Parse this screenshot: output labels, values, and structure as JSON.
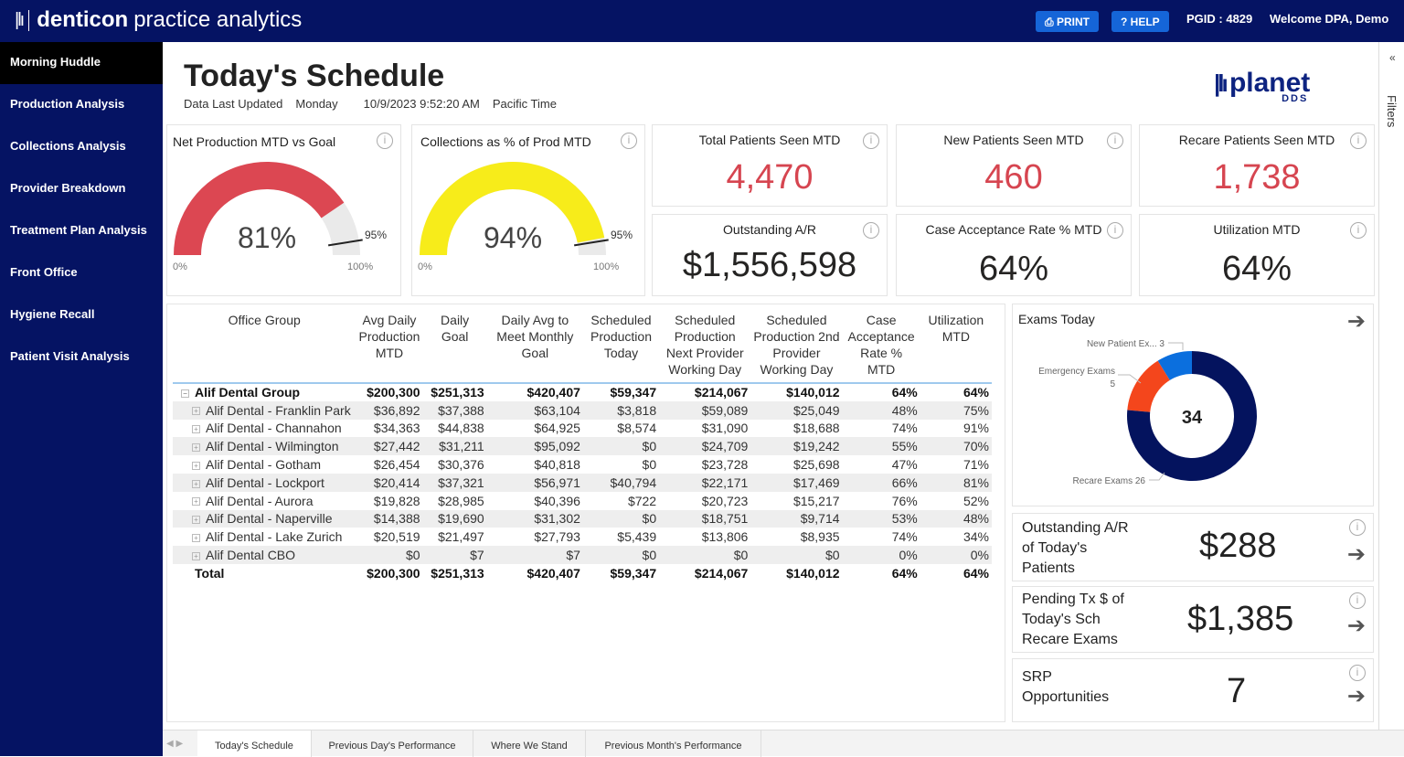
{
  "header": {
    "brand_bold": "denticon",
    "brand_rest": "practice analytics",
    "print": "PRINT",
    "help": "HELP",
    "pgid": "PGID : 4829",
    "welcome": "Welcome DPA, Demo"
  },
  "sidebar": {
    "items": [
      {
        "label": "Morning Huddle"
      },
      {
        "label": "Production Analysis"
      },
      {
        "label": "Collections Analysis"
      },
      {
        "label": "Provider Breakdown"
      },
      {
        "label": "Treatment Plan Analysis"
      },
      {
        "label": "Front Office"
      },
      {
        "label": "Hygiene Recall"
      },
      {
        "label": "Patient Visit Analysis"
      }
    ]
  },
  "page": {
    "title": "Today's Schedule",
    "updated_label": "Data Last Updated",
    "day": "Monday",
    "datetime": "10/9/2023 9:52:20 AM",
    "tz": "Pacific Time",
    "logo_text": "planet",
    "logo_sub": "DDS",
    "filters": "Filters"
  },
  "gauges": [
    {
      "title": "Net Production MTD vs Goal",
      "value": 81,
      "value_label": "81%",
      "target": 95,
      "target_label": "95%",
      "min": "0%",
      "max": "100%",
      "color": "#dc4752"
    },
    {
      "title": "Collections as % of Prod MTD",
      "value": 94,
      "value_label": "94%",
      "target": 95,
      "target_label": "95%",
      "min": "0%",
      "max": "100%",
      "color": "#f7ec1a"
    }
  ],
  "kpis": [
    {
      "title": "Total Patients Seen MTD",
      "value": "4,470"
    },
    {
      "title": "New Patients Seen MTD",
      "value": "460"
    },
    {
      "title": "Recare Patients Seen MTD",
      "value": "1,738"
    },
    {
      "title": "Outstanding A/R",
      "value": "$1,556,598"
    },
    {
      "title": "Case Acceptance Rate % MTD",
      "value": "64%"
    },
    {
      "title": "Utilization MTD",
      "value": "64%"
    }
  ],
  "table": {
    "headers": [
      "Office Group",
      "Avg Daily Production MTD",
      "Daily Goal",
      "Daily Avg to Meet Monthly Goal",
      "Scheduled Production Today",
      "Scheduled Production Next Provider Working Day",
      "Scheduled Production 2nd Provider Working Day",
      "Case Acceptance Rate % MTD",
      "Utilization MTD"
    ],
    "group": [
      "Alif Dental Group",
      "$200,300",
      "$251,313",
      "$420,407",
      "$59,347",
      "$214,067",
      "$140,012",
      "64%",
      "64%"
    ],
    "rows": [
      [
        "Alif Dental - Franklin Park",
        "$36,892",
        "$37,388",
        "$63,104",
        "$3,818",
        "$59,089",
        "$25,049",
        "48%",
        "75%"
      ],
      [
        "Alif Dental - Channahon",
        "$34,363",
        "$44,838",
        "$64,925",
        "$8,574",
        "$31,090",
        "$18,688",
        "74%",
        "91%"
      ],
      [
        "Alif Dental - Wilmington",
        "$27,442",
        "$31,211",
        "$95,092",
        "$0",
        "$24,709",
        "$19,242",
        "55%",
        "70%"
      ],
      [
        "Alif Dental - Gotham",
        "$26,454",
        "$30,376",
        "$40,818",
        "$0",
        "$23,728",
        "$25,698",
        "47%",
        "71%"
      ],
      [
        "Alif Dental - Lockport",
        "$20,414",
        "$37,321",
        "$56,971",
        "$40,794",
        "$22,171",
        "$17,469",
        "66%",
        "81%"
      ],
      [
        "Alif Dental - Aurora",
        "$19,828",
        "$28,985",
        "$40,396",
        "$722",
        "$20,723",
        "$15,217",
        "76%",
        "52%"
      ],
      [
        "Alif Dental - Naperville",
        "$14,388",
        "$19,690",
        "$31,302",
        "$0",
        "$18,751",
        "$9,714",
        "53%",
        "48%"
      ],
      [
        "Alif Dental - Lake Zurich",
        "$20,519",
        "$21,497",
        "$27,793",
        "$5,439",
        "$13,806",
        "$8,935",
        "74%",
        "34%"
      ],
      [
        "Alif Dental CBO",
        "$0",
        "$7",
        "$7",
        "$0",
        "$0",
        "$0",
        "0%",
        "0%"
      ]
    ],
    "total": [
      "Total",
      "$200,300",
      "$251,313",
      "$420,407",
      "$59,347",
      "$214,067",
      "$140,012",
      "64%",
      "64%"
    ]
  },
  "exams": {
    "title": "Exams Today",
    "total": "34",
    "slices": [
      {
        "label": "New Patient Ex...",
        "value": 3,
        "color": "#0b6fde"
      },
      {
        "label": "Emergency Exams",
        "value": 5,
        "color": "#f4461c"
      },
      {
        "label": "Recare Exams",
        "value": 26,
        "color": "#04135e"
      }
    ]
  },
  "side_cards": [
    {
      "label": "Outstanding A/R of Today's Patients",
      "value": "$288"
    },
    {
      "label": "Pending Tx $ of Today's Sch Recare Exams",
      "value": "$1,385"
    },
    {
      "label": "SRP Opportunities",
      "value": "7"
    }
  ],
  "tabs": [
    {
      "label": "Today's Schedule"
    },
    {
      "label": "Previous Day's Performance"
    },
    {
      "label": "Where We Stand"
    },
    {
      "label": "Previous Month's Performance"
    }
  ]
}
